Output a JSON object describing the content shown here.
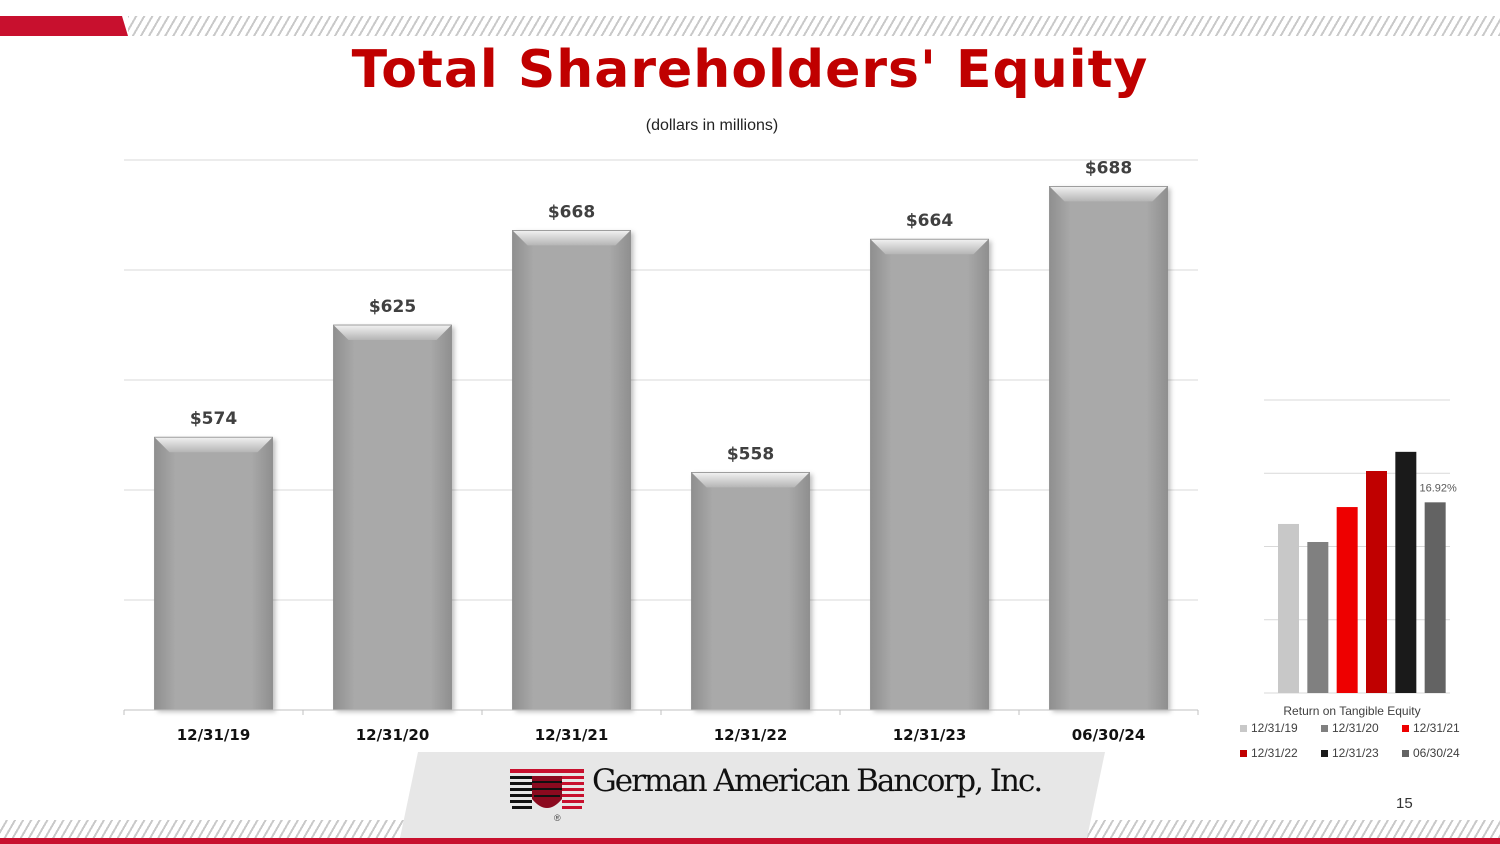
{
  "slide": {
    "title": "Total Shareholders' Equity",
    "subtitle": "(dollars  in millions)",
    "page_number": "15",
    "company_name": "German American Bancorp, Inc.",
    "brand_red": "#c8102e"
  },
  "chart_data": [
    {
      "type": "bar",
      "title": "Total Shareholders' Equity",
      "subtitle": "(dollars  in millions)",
      "categories": [
        "12/31/19",
        "12/31/20",
        "12/31/21",
        "12/31/22",
        "12/31/23",
        "06/30/24"
      ],
      "values": [
        574,
        625,
        668,
        558,
        664,
        688
      ],
      "data_labels": [
        "$574",
        "$625",
        "$668",
        "$558",
        "$664",
        "$688"
      ],
      "ylim": [
        450,
        700
      ],
      "grid": true,
      "color": "#a6a6a6"
    },
    {
      "type": "bar",
      "title": "Return on Tangible Equity",
      "categories": [
        "12/31/19",
        "12/31/20",
        "12/31/21",
        "12/31/22",
        "12/31/23",
        "06/30/24"
      ],
      "values": [
        15.0,
        13.4,
        16.5,
        19.7,
        21.4,
        16.92
      ],
      "annotation": "16.92%",
      "colors": [
        "#c8c8c8",
        "#808080",
        "#ee0000",
        "#c00000",
        "#1a1a1a",
        "#636363"
      ],
      "ylim": [
        0,
        26
      ],
      "grid": true,
      "legend_position": "bottom"
    }
  ]
}
